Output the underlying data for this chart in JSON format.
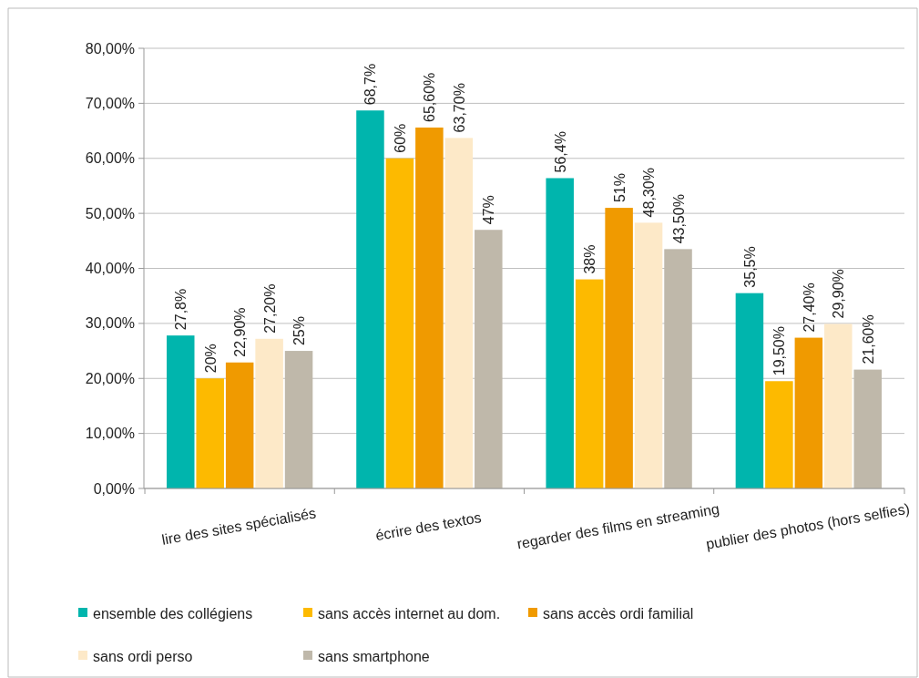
{
  "chart_data": {
    "type": "bar",
    "categories": [
      "lire des sites spécialisés",
      "écrire des textos",
      "regarder des films en streaming",
      "publier des photos (hors selfies)"
    ],
    "series": [
      {
        "name": "ensemble des collégiens",
        "color": "#00b5ad",
        "values": [
          27.8,
          68.7,
          56.4,
          35.5
        ],
        "value_labels": [
          "27,8%",
          "68,7%",
          "56,4%",
          "35,5%"
        ]
      },
      {
        "name": "sans accès internet au dom.",
        "color": "#fdba00",
        "values": [
          20,
          60,
          38,
          19.5
        ],
        "value_labels": [
          "20%",
          "60%",
          "38%",
          "19,50%"
        ]
      },
      {
        "name": "sans accès ordi familial",
        "color": "#f09a00",
        "values": [
          22.9,
          65.6,
          51,
          27.4
        ],
        "value_labels": [
          "22,90%",
          "65,60%",
          "51%",
          "27,40%"
        ]
      },
      {
        "name": "sans ordi perso",
        "color": "#fde9c8",
        "values": [
          27.2,
          63.7,
          48.3,
          29.9
        ],
        "value_labels": [
          "27,20%",
          "63,70%",
          "48,30%",
          "29,90%"
        ]
      },
      {
        "name": "sans smartphone",
        "color": "#bfb8aa",
        "values": [
          25,
          47,
          43.5,
          21.6
        ],
        "value_labels": [
          "25%",
          "47%",
          "43,50%",
          "21,60%"
        ]
      }
    ],
    "ylim": [
      0,
      80
    ],
    "yticks": [
      {
        "value": 0,
        "label": "0,00%"
      },
      {
        "value": 10,
        "label": "10,00%"
      },
      {
        "value": 20,
        "label": "20,00%"
      },
      {
        "value": 30,
        "label": "30,00%"
      },
      {
        "value": 40,
        "label": "40,00%"
      },
      {
        "value": 50,
        "label": "50,00%"
      },
      {
        "value": 60,
        "label": "60,00%"
      },
      {
        "value": 70,
        "label": "70,00%"
      },
      {
        "value": 80,
        "label": "80,00%"
      }
    ],
    "grid": "y",
    "legend": "bottom"
  }
}
